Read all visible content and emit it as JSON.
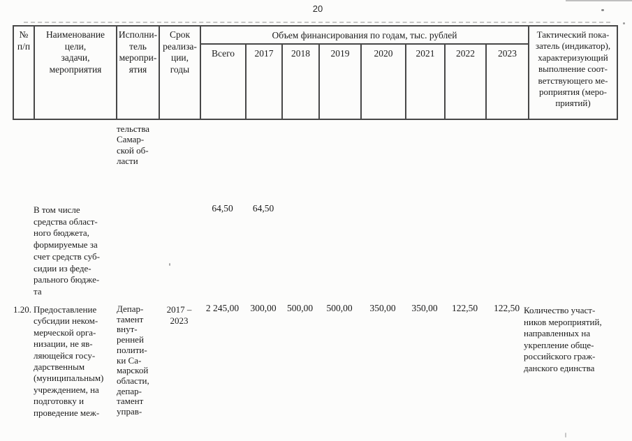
{
  "page": {
    "number": "20"
  },
  "table": {
    "header": {
      "col_num": "№\nп/п",
      "col_name": "Наименование\nцели,\nзадачи,\nмероприятия",
      "col_executor": "Исполни-\nтель\nмеропри-\nятия",
      "col_term": "Срок\nреализа-\nции,\nгоды",
      "finance_group": "Объем финансирования по годам, тыс. рублей",
      "finance_cols": [
        "Всего",
        "2017",
        "2018",
        "2019",
        "2020",
        "2021",
        "2022",
        "2023"
      ],
      "col_indicator": "Тактический пока-\nзатель (индикатор),\nхарактеризующий\nвыполнение соот-\nветствующего ме-\nроприятия (меро-\nприятий)"
    },
    "rows": {
      "executor_continuation": "тельства\nСамар-\nской об-\nласти",
      "subtotal": {
        "name": "В том числе\nсредства област-\nного бюджета,\nформируемые за\nсчет средств суб-\nсидии из феде-\nрального бюдже-\nта",
        "total": "64,50",
        "y2017": "64,50"
      },
      "row_120": {
        "num": "1.20.",
        "name": "Предоставление\nсубсидии неком-\nмерческой орга-\nнизации, не яв-\nляющейся госу-\nдарственным\n(муниципальным)\nучреждением, на\nподготовку и\nпроведение меж-",
        "executor": "Депар-\nтамент\nвнут-\nренней\nполити-\nки Са-\nмарской\nобласти,\nдепар-\nтамент\nуправ-",
        "term": "2017 –\n2023",
        "values": [
          "2 245,00",
          "300,00",
          "500,00",
          "500,00",
          "350,00",
          "350,00",
          "122,50",
          "122,50"
        ],
        "indicator": "Количество участ-\nников мероприятий,\nнаправленных на\nукрепление обще-\nроссийского граж-\nданского единства"
      }
    }
  },
  "colors": {
    "ink": "#1b1b1b",
    "border": "#474747",
    "paper": "#fcfcfb"
  }
}
